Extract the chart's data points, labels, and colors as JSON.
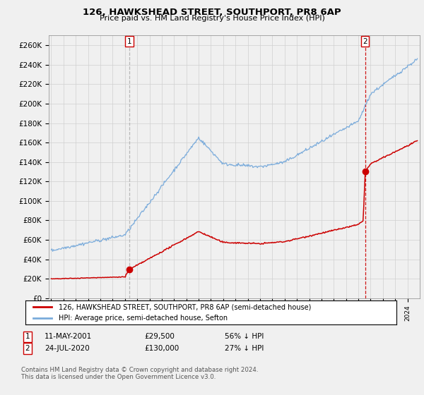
{
  "title": "126, HAWKSHEAD STREET, SOUTHPORT, PR8 6AP",
  "subtitle": "Price paid vs. HM Land Registry's House Price Index (HPI)",
  "ylabel_ticks": [
    "£0",
    "£20K",
    "£40K",
    "£60K",
    "£80K",
    "£100K",
    "£120K",
    "£140K",
    "£160K",
    "£180K",
    "£200K",
    "£220K",
    "£240K",
    "£260K"
  ],
  "ytick_values": [
    0,
    20000,
    40000,
    60000,
    80000,
    100000,
    120000,
    140000,
    160000,
    180000,
    200000,
    220000,
    240000,
    260000
  ],
  "ylim": [
    0,
    270000
  ],
  "sale1_date": 2001.36,
  "sale1_price": 29500,
  "sale2_date": 2020.56,
  "sale2_price": 130000,
  "red_line_color": "#cc0000",
  "blue_line_color": "#7aabdb",
  "marker_color": "#cc0000",
  "vline1_color": "#aaaaaa",
  "vline2_color": "#cc0000",
  "grid_color": "#d0d0d0",
  "background_color": "#f0f0f0",
  "plot_bg_color": "#f0f0f0",
  "legend_label_red": "126, HAWKSHEAD STREET, SOUTHPORT, PR8 6AP (semi-detached house)",
  "legend_label_blue": "HPI: Average price, semi-detached house, Sefton",
  "footnote": "Contains HM Land Registry data © Crown copyright and database right 2024.\nThis data is licensed under the Open Government Licence v3.0.",
  "xmin": 1994.8,
  "xmax": 2025.0
}
